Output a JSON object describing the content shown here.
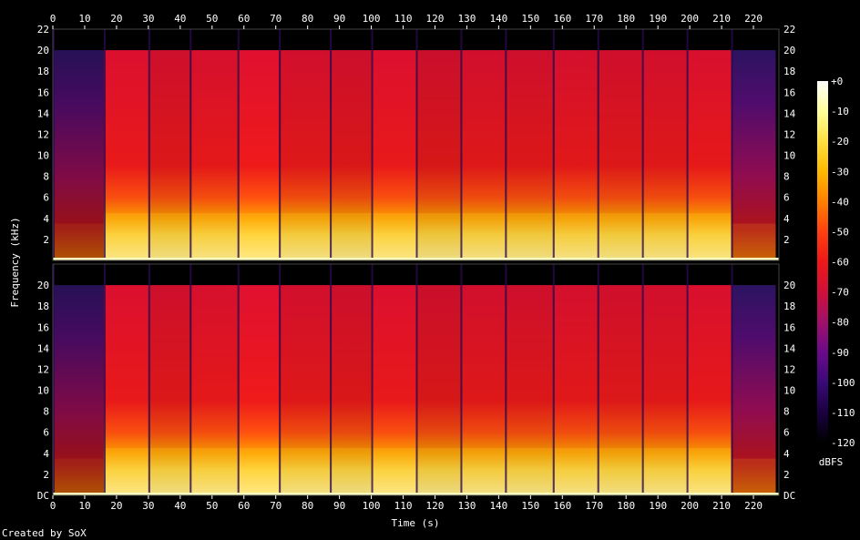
{
  "credit": "Created by SoX",
  "chart_data": {
    "type": "heatmap",
    "title": "",
    "xlabel": "Time (s)",
    "ylabel": "Frequency (kHz)",
    "xlim": [
      0,
      228
    ],
    "ylim": [
      0,
      22
    ],
    "x_ticks": [
      0,
      10,
      20,
      30,
      40,
      50,
      60,
      70,
      80,
      90,
      100,
      110,
      120,
      130,
      140,
      150,
      160,
      170,
      180,
      190,
      200,
      210,
      220
    ],
    "y_ticks": [
      2,
      4,
      6,
      8,
      10,
      12,
      14,
      16,
      18,
      20,
      22
    ],
    "dc_label": "DC",
    "channels": 2,
    "colorbar": {
      "label": "dBFS",
      "ticks": [
        "+0",
        "-10",
        "-20",
        "-30",
        "-40",
        "-50",
        "-60",
        "-70",
        "-80",
        "-90",
        "-100",
        "-110",
        "-120"
      ],
      "range": [
        -120,
        0
      ],
      "colors": [
        "#000000",
        "#1a0040",
        "#3a0a78",
        "#6a0a8a",
        "#a0106a",
        "#d0103a",
        "#ee1818",
        "#ff4010",
        "#ff8000",
        "#ffb800",
        "#ffe040",
        "#ffff9a",
        "#ffffff"
      ]
    },
    "segments": [
      {
        "start": 0,
        "end": 16,
        "level": 0.25
      },
      {
        "start": 16,
        "end": 30,
        "level": 0.95
      },
      {
        "start": 30,
        "end": 43,
        "level": 0.82
      },
      {
        "start": 43,
        "end": 58,
        "level": 0.9
      },
      {
        "start": 58,
        "end": 71,
        "level": 1.0
      },
      {
        "start": 71,
        "end": 87,
        "level": 0.85
      },
      {
        "start": 87,
        "end": 100,
        "level": 0.8
      },
      {
        "start": 100,
        "end": 114,
        "level": 0.95
      },
      {
        "start": 114,
        "end": 128,
        "level": 0.78
      },
      {
        "start": 128,
        "end": 142,
        "level": 0.85
      },
      {
        "start": 142,
        "end": 157,
        "level": 0.82
      },
      {
        "start": 157,
        "end": 171,
        "level": 0.88
      },
      {
        "start": 171,
        "end": 185,
        "level": 0.83
      },
      {
        "start": 185,
        "end": 199,
        "level": 0.85
      },
      {
        "start": 199,
        "end": 213,
        "level": 0.92
      },
      {
        "start": 213,
        "end": 227,
        "level": 0.45
      }
    ],
    "cutoff_khz": 20
  }
}
